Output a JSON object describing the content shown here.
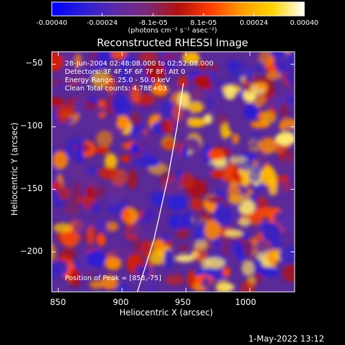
{
  "colorbar": {
    "tick_labels": [
      "-0.00040",
      "-0.00024",
      "-8.1e-05",
      "8.1e-05",
      "0.00024",
      "0.00040"
    ],
    "unit_label": "(photons cm⁻² s⁻¹ asec⁻²)",
    "colors": [
      "#0000ff",
      "#2a1fd8",
      "#5a2aa8",
      "#7a2a7a",
      "#b01010",
      "#ff3a00",
      "#ff9a00",
      "#ffd400",
      "#ffffff"
    ]
  },
  "chart_data": {
    "type": "heatmap",
    "title": "Reconstructed RHESSI Image",
    "xlabel": "Heliocentric X (arcsec)",
    "ylabel": "Heliocentric Y (arcsec)",
    "xlim": [
      845,
      1035
    ],
    "ylim": [
      -232,
      -40
    ],
    "x_ticks": [
      850,
      900,
      950,
      1000
    ],
    "y_ticks": [
      -50,
      -100,
      -150,
      -200
    ],
    "x_tick_labels": [
      "850",
      "900",
      "950",
      "1000"
    ],
    "y_tick_labels": [
      "−50",
      "−100",
      "−150",
      "−200"
    ],
    "colorbar_range": [
      -0.0004,
      0.0004
    ],
    "annotations": [
      "28-Jun-2004 02:48:08.000 to 02:52:08.000",
      "Detectors: 3F 4F 5F 6F 7F 8F; Att 0",
      "Energy Range: 25.0 - 50.0 keV",
      "Clean     Total counts: 4.78E+03"
    ],
    "peak_label": "Position of Peak = [858,-75]",
    "peak_position": [
      858,
      -75
    ],
    "limb_curve": [
      [
        912,
        -232
      ],
      [
        925,
        -190
      ],
      [
        936,
        -140
      ],
      [
        943,
        -100
      ],
      [
        948,
        -65
      ]
    ]
  },
  "datestamp": "1-May-2022 13:12"
}
